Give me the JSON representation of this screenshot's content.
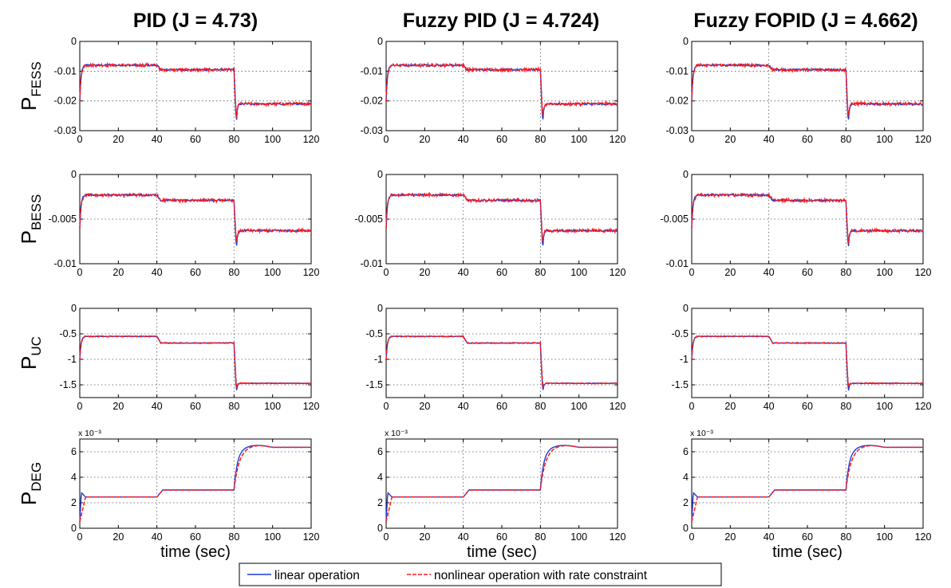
{
  "colors": {
    "linear": "#1f3bd6",
    "nonlinear": "#ff1a1a"
  },
  "legend": {
    "items": [
      {
        "label": "linear operation",
        "style": "solid",
        "color": "#1f3bd6"
      },
      {
        "label": "nonlinear operation with rate constraint",
        "style": "dashed",
        "color": "#ff1a1a"
      }
    ]
  },
  "chart_data": {
    "type": "line",
    "columns": [
      {
        "title": "PID (J = 4.73)"
      },
      {
        "title": "Fuzzy PID (J = 4.724)"
      },
      {
        "title": "Fuzzy FOPID (J = 4.662)"
      }
    ],
    "rows": [
      {
        "ylabel_main": "P",
        "ylabel_sub": "FESS",
        "ylim": [
          -0.03,
          0
        ],
        "yticks": [
          "0",
          "-0.01",
          "-0.02",
          "-0.03"
        ],
        "ytick_values": [
          0,
          -0.01,
          -0.02,
          -0.03
        ],
        "exponent": "",
        "levels": {
          "start": -0.02,
          "t0_40": -0.008,
          "t40_80": -0.0095,
          "dip": -0.028,
          "after80": -0.021
        }
      },
      {
        "ylabel_main": "P",
        "ylabel_sub": "BESS",
        "ylim": [
          -0.01,
          0
        ],
        "yticks": [
          "0",
          "-0.005",
          "-0.01"
        ],
        "ytick_values": [
          0,
          -0.005,
          -0.01
        ],
        "exponent": "",
        "levels": {
          "start": -0.006,
          "t0_40": -0.0023,
          "t40_80": -0.0029,
          "dip": -0.0085,
          "after80": -0.0063
        }
      },
      {
        "ylabel_main": "P",
        "ylabel_sub": "UC",
        "ylim": [
          -1.75,
          0
        ],
        "yticks": [
          "0",
          "-0.5",
          "-1",
          "-1.5"
        ],
        "ytick_values": [
          0,
          -0.5,
          -1,
          -1.5
        ],
        "exponent": "",
        "levels": {
          "start": -1.0,
          "t0_40": -0.55,
          "t40_80": -0.68,
          "dip": -1.65,
          "after80": -1.47
        }
      },
      {
        "ylabel_main": "P",
        "ylabel_sub": "DEG",
        "ylim": [
          0,
          7
        ],
        "yticks": [
          "0",
          "2",
          "4",
          "6"
        ],
        "ytick_values": [
          0,
          2,
          4,
          6
        ],
        "exponent": "x 10⁻³",
        "levels": {
          "start": 0.5,
          "peak": 2.8,
          "t0_40": 2.45,
          "t40_80": 3.0,
          "after80": 6.35,
          "overshoot": 6.5
        }
      }
    ],
    "x": {
      "label": "time (sec)",
      "lim": [
        0,
        120
      ],
      "ticks": [
        "0",
        "20",
        "40",
        "60",
        "80",
        "100",
        "120"
      ],
      "tick_values": [
        0,
        20,
        40,
        60,
        80,
        100,
        120
      ]
    },
    "series": [
      {
        "name": "linear operation",
        "color": "#1f3bd6",
        "dash": "solid"
      },
      {
        "name": "nonlinear operation with rate constraint",
        "color": "#ff1a1a",
        "dash": "dashed"
      }
    ],
    "grid": "dotted, at x = 40 and x = 80 and every y tick",
    "legend_position": "bottom-center"
  }
}
